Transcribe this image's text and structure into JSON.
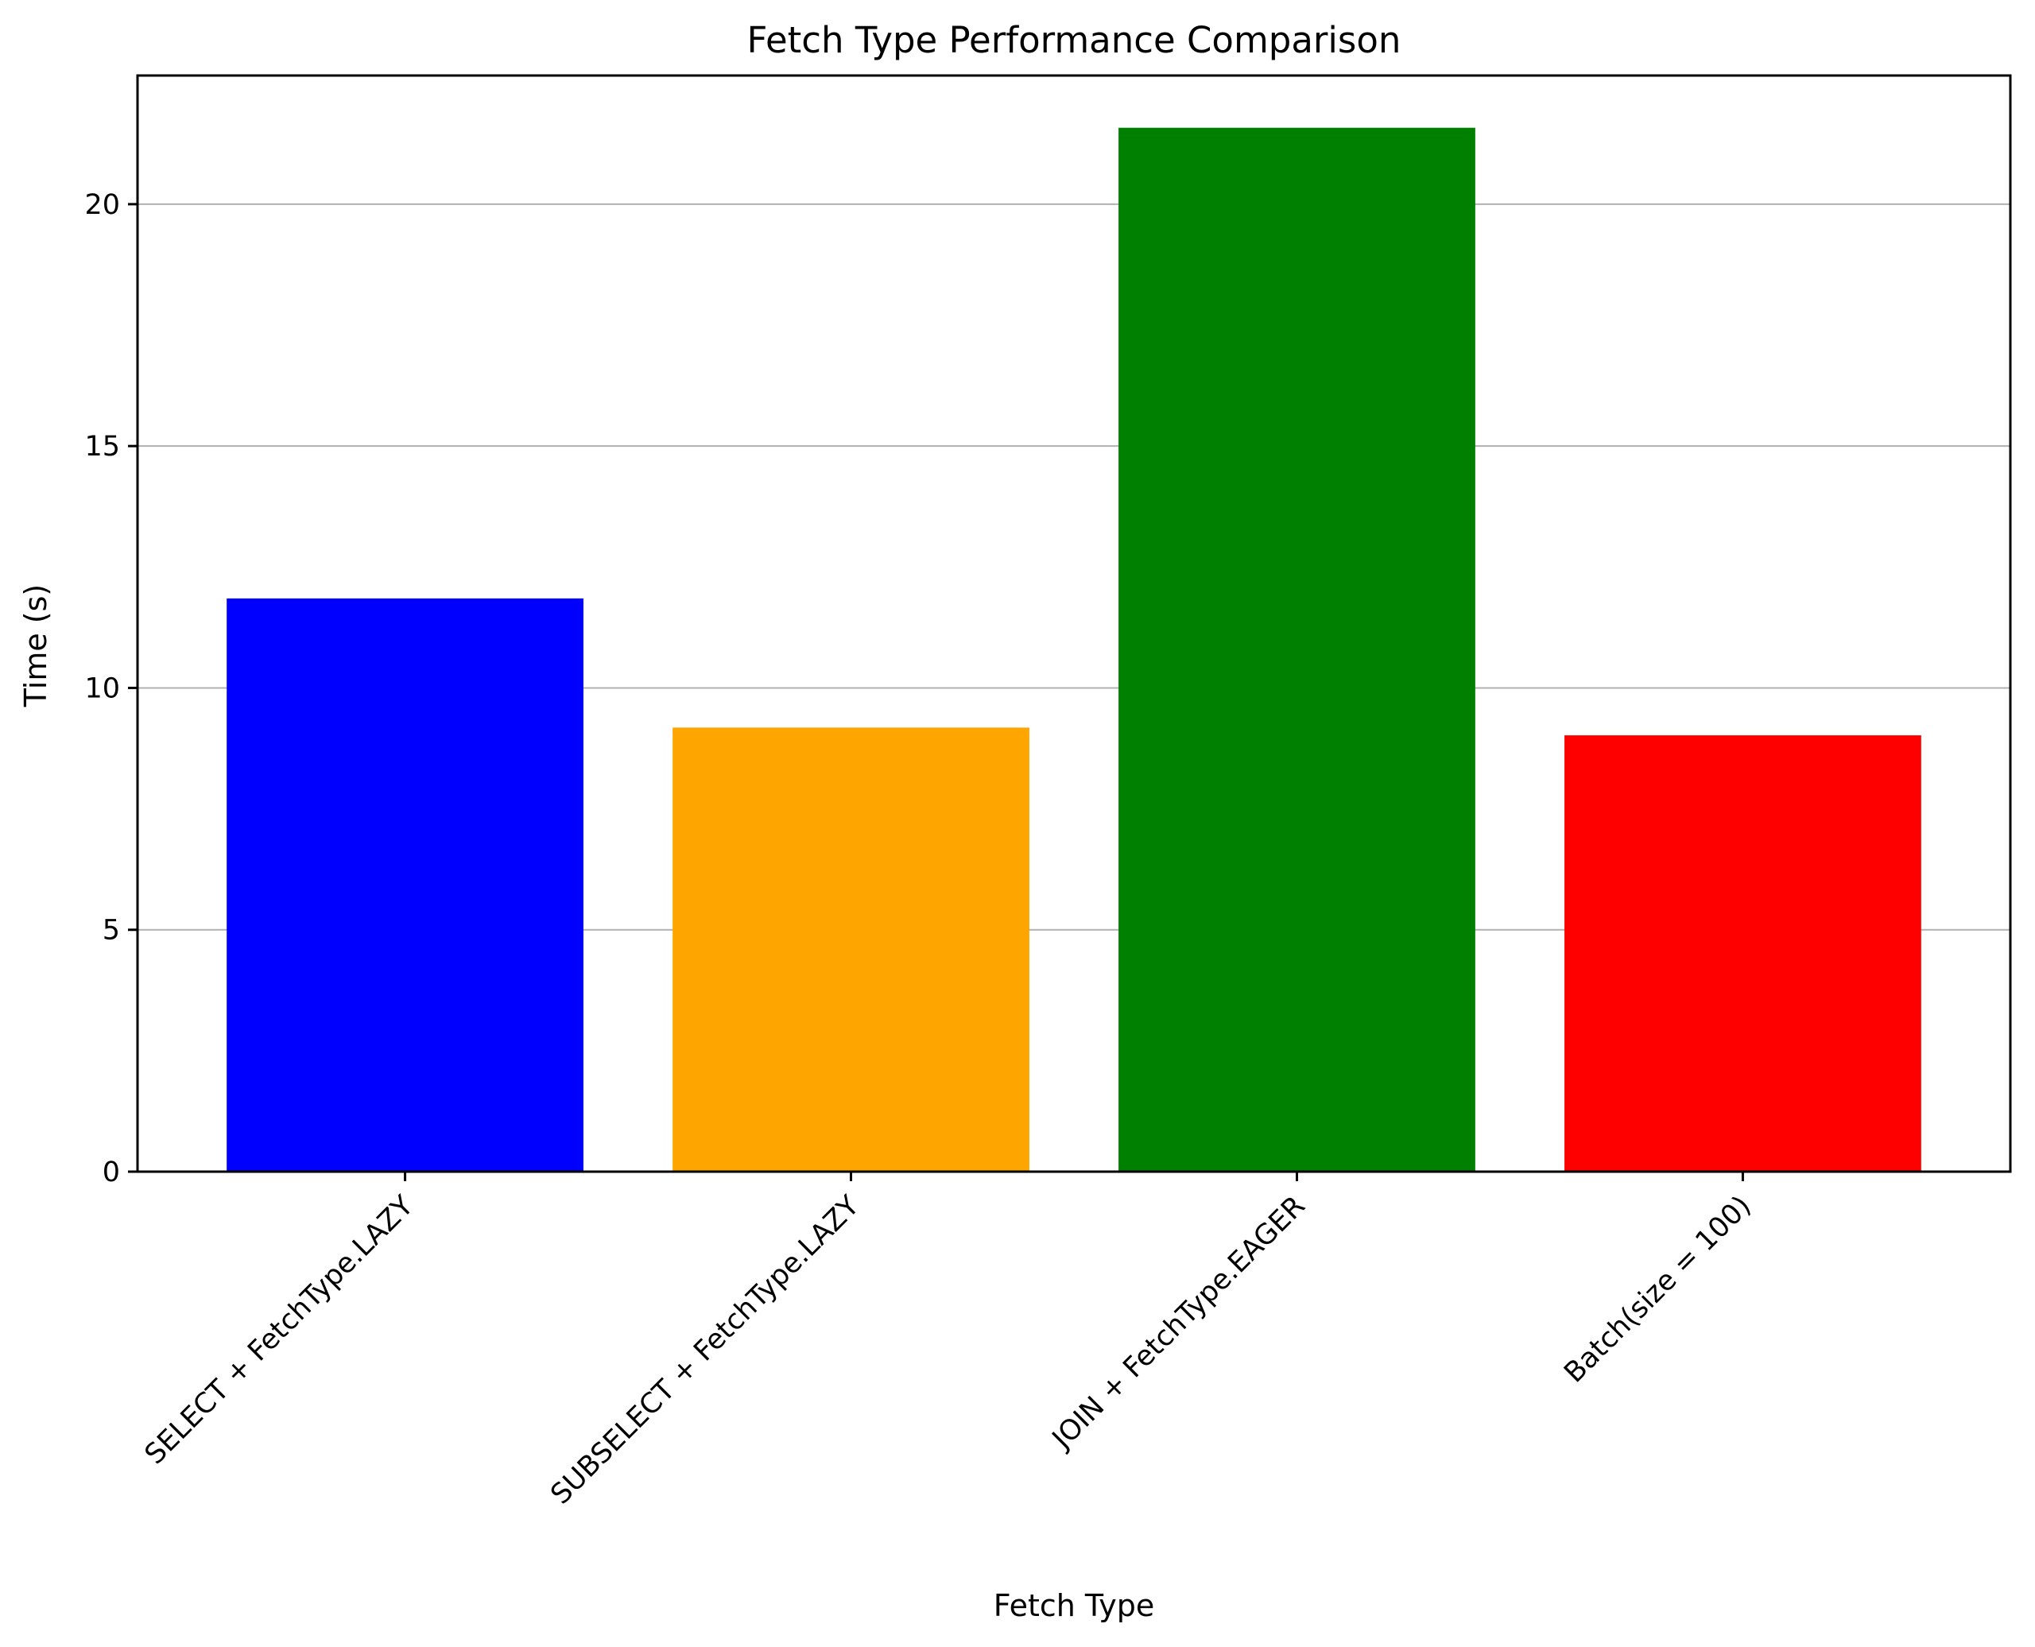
{
  "chart_data": {
    "type": "bar",
    "title": "Fetch Type Performance Comparison",
    "xlabel": "Fetch Type",
    "ylabel": "Time (s)",
    "categories": [
      "SELECT + FetchType.LAZY",
      "SUBSELECT + FetchType.LAZY",
      "JOIN + FetchType.EAGER",
      "Batch(size = 100)"
    ],
    "values": [
      11.85,
      9.18,
      21.58,
      9.02
    ],
    "colors": [
      "#0000ff",
      "#ffa500",
      "#008000",
      "#ff0000"
    ],
    "ylim": [
      0,
      22.66
    ],
    "yticks": [
      0,
      5,
      10,
      15,
      20
    ],
    "grid": "y",
    "legend": "none"
  }
}
